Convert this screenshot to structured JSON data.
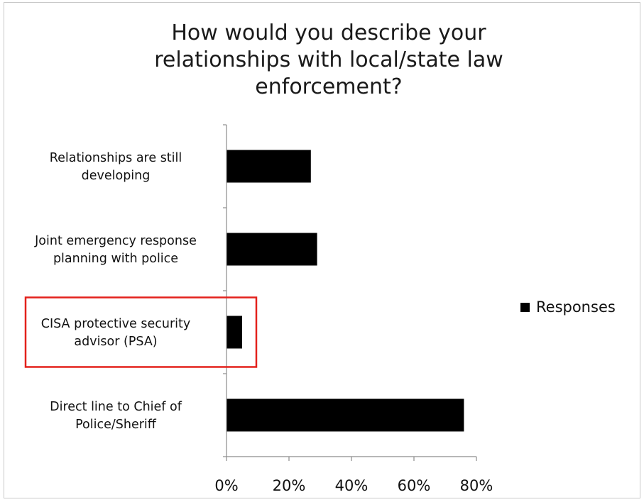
{
  "chart_data": {
    "type": "bar",
    "orientation": "horizontal",
    "title": "How would you describe your relationships with local/state law enforcement?",
    "title_lines": [
      "How would you describe your",
      "relationships with local/state law",
      "enforcement?"
    ],
    "categories": [
      "Relationships are still developing",
      "Joint emergency response planning with police",
      "CISA protective security advisor (PSA)",
      "Direct line to Chief of Police/Sheriff"
    ],
    "category_lines": [
      [
        "Relationships are still",
        "developing"
      ],
      [
        "Joint emergency response",
        "planning with police"
      ],
      [
        "CISA protective security",
        "advisor (PSA)"
      ],
      [
        "Direct line to Chief of",
        "Police/Sheriff"
      ]
    ],
    "series": [
      {
        "name": "Responses",
        "values": [
          27,
          29,
          5,
          76
        ],
        "color": "#000000"
      }
    ],
    "xlim": [
      0,
      80
    ],
    "xticks": [
      0,
      20,
      40,
      60,
      80
    ],
    "tick_suffix": "%",
    "xlabel": "",
    "ylabel": "",
    "grid": false,
    "legend": {
      "position": "right",
      "entries": [
        "Responses"
      ]
    },
    "highlight": {
      "category_index": 2,
      "color": "#e3211c"
    }
  }
}
